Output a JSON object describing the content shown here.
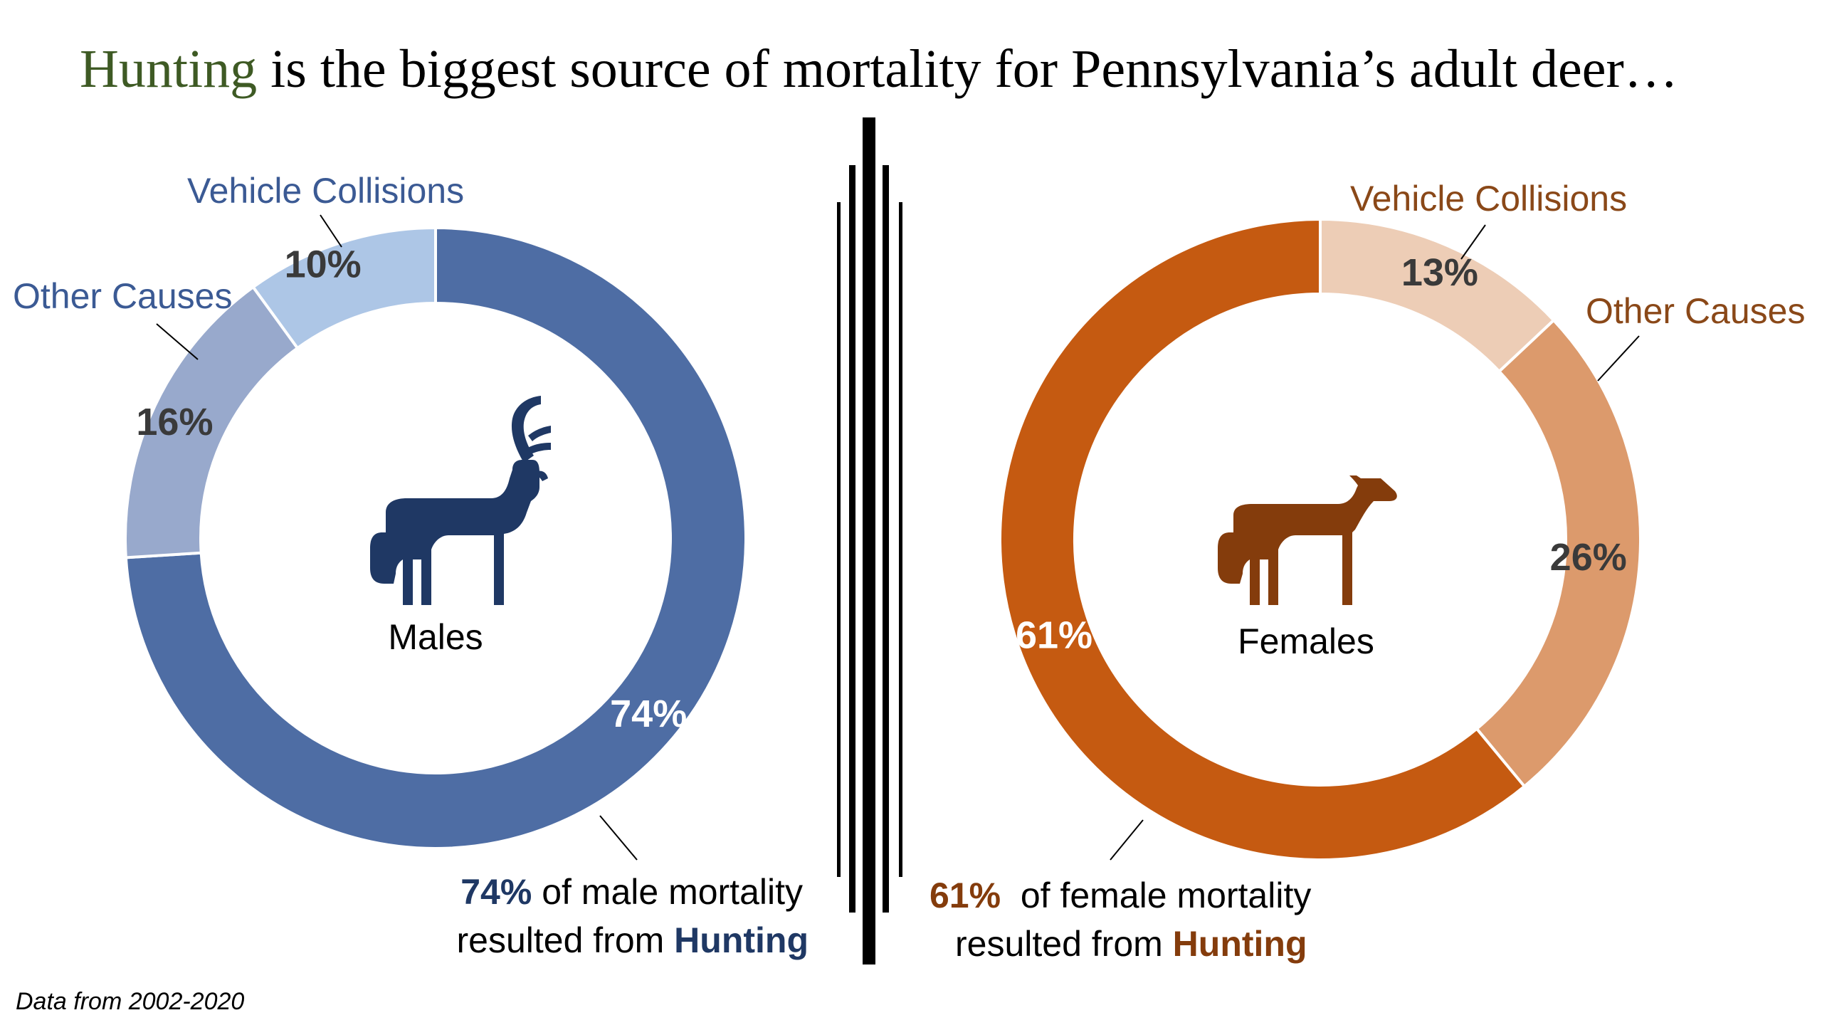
{
  "colors": {
    "title_accent": "#3e5a24",
    "title_text": "#000000",
    "divider": "#000000",
    "male_hunting": "#4e6da4",
    "male_other": "#98a9cc",
    "male_vehicle": "#adc6e6",
    "male_dark": "#1f3864",
    "male_label": "#3b5a94",
    "female_hunting": "#c55a11",
    "female_other": "#dc9a6c",
    "female_vehicle": "#edcdb6",
    "female_dark": "#843c0c",
    "female_label": "#8a4818",
    "pct_dark": "#3a3a3a",
    "pct_light": "#ffffff"
  },
  "title": {
    "accent": "Hunting",
    "rest": " is the biggest source of mortality for Pennsylvania’s adult deer…"
  },
  "footnote": "Data from 2002-2020",
  "chart_data": [
    {
      "type": "donut",
      "center_label": "Males",
      "center_icon": "buck-icon",
      "slices": [
        {
          "category": "Hunting",
          "value": 74,
          "label": "74%"
        },
        {
          "category": "Other Causes",
          "value": 16,
          "label": "16%"
        },
        {
          "category": "Vehicle Collisions",
          "value": 10,
          "label": "10%"
        }
      ],
      "callouts": {
        "vehicle": "Vehicle Collisions",
        "other": "Other Causes"
      },
      "caption": {
        "pct": "74%",
        "line1_rest": " of male mortality",
        "line2_prefix": "resulted from ",
        "line2_emph": "Hunting"
      }
    },
    {
      "type": "donut",
      "center_label": "Females",
      "center_icon": "doe-icon",
      "slices": [
        {
          "category": "Vehicle Collisions",
          "value": 13,
          "label": "13%"
        },
        {
          "category": "Other Causes",
          "value": 26,
          "label": "26%"
        },
        {
          "category": "Hunting",
          "value": 61,
          "label": "61%"
        }
      ],
      "callouts": {
        "vehicle": "Vehicle Collisions",
        "other": "Other Causes"
      },
      "caption": {
        "pct": "61%",
        "line1_rest": "  of female mortality",
        "line2_prefix": "resulted from ",
        "line2_emph": "Hunting"
      }
    }
  ]
}
